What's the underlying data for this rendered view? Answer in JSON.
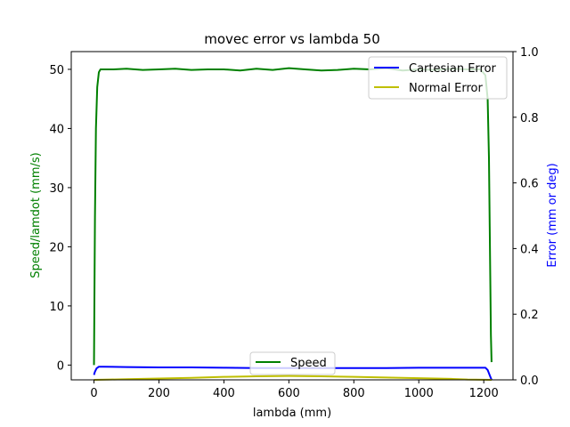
{
  "chart_data": {
    "type": "line",
    "title": "movec error vs lambda 50",
    "xlabel": "lambda (mm)",
    "ylabel_left": "Speed/lamdot (mm/s)",
    "ylabel_right": "Error (mm or deg)",
    "xlim": [
      -70,
      1290
    ],
    "ylim_left": [
      -2.5,
      53
    ],
    "ylim_right": [
      0,
      1.0
    ],
    "xticks": [
      0,
      200,
      400,
      600,
      800,
      1000,
      1200
    ],
    "yticks_left": [
      0,
      10,
      20,
      30,
      40,
      50
    ],
    "yticks_right": [
      0.0,
      0.2,
      0.4,
      0.6,
      0.8,
      1.0
    ],
    "grid": false,
    "legend_speed_placement": "lower-center",
    "legend_error_placement": "upper-right",
    "colors": {
      "speed": "#008000",
      "cartesian": "#0000ff",
      "normal": "#bfbf00",
      "left_label": "#008000",
      "right_label": "#0000ff"
    },
    "series": [
      {
        "name": "Speed",
        "axis": "left",
        "x": [
          0,
          3,
          6,
          10,
          15,
          20,
          30,
          60,
          100,
          150,
          200,
          250,
          300,
          350,
          400,
          450,
          500,
          550,
          600,
          650,
          700,
          750,
          800,
          850,
          900,
          950,
          1000,
          1050,
          1100,
          1150,
          1190,
          1205,
          1212,
          1216,
          1220,
          1222,
          1224
        ],
        "y": [
          0,
          25,
          40,
          47,
          49.5,
          50,
          50,
          50,
          50.1,
          49.9,
          50,
          50.1,
          49.9,
          50,
          50,
          49.8,
          50.1,
          49.9,
          50.2,
          50,
          49.8,
          49.9,
          50.1,
          50,
          50.2,
          49.8,
          50,
          49.9,
          50.1,
          50,
          50,
          49,
          45,
          35,
          15,
          5,
          0.5
        ]
      },
      {
        "name": "Cartesian Error",
        "axis": "right",
        "x": [
          0,
          3,
          8,
          15,
          30,
          100,
          200,
          300,
          400,
          500,
          600,
          700,
          800,
          900,
          1000,
          1100,
          1190,
          1205,
          1212,
          1218,
          1224
        ],
        "y": [
          0.015,
          0.025,
          0.035,
          0.04,
          0.04,
          0.039,
          0.038,
          0.038,
          0.037,
          0.036,
          0.036,
          0.036,
          0.036,
          0.036,
          0.037,
          0.037,
          0.037,
          0.037,
          0.03,
          0.015,
          0.0
        ]
      },
      {
        "name": "Normal Error",
        "axis": "right",
        "x": [
          0,
          50,
          100,
          200,
          300,
          400,
          500,
          600,
          700,
          800,
          900,
          1000,
          1100,
          1150,
          1224
        ],
        "y": [
          0.0,
          0.001,
          0.002,
          0.004,
          0.006,
          0.009,
          0.011,
          0.012,
          0.011,
          0.009,
          0.007,
          0.005,
          0.003,
          0.001,
          0.0
        ]
      }
    ]
  }
}
